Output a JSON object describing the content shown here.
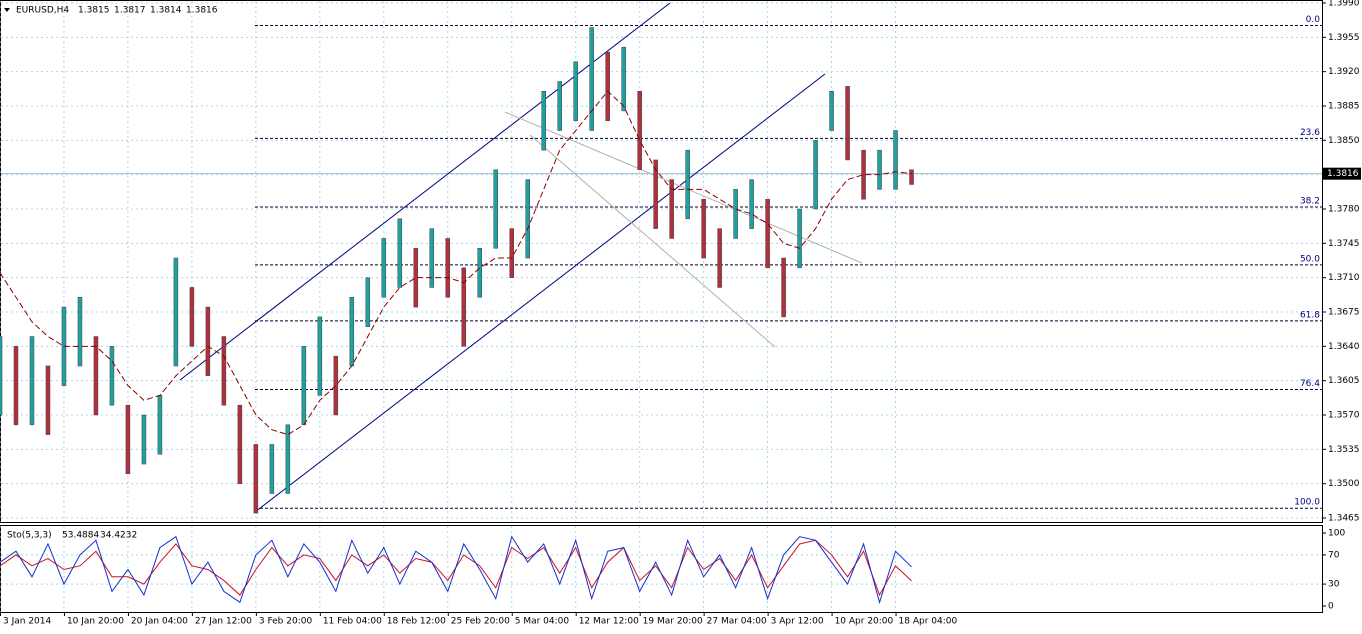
{
  "chart_data": [
    {
      "type": "ohlc",
      "symbol": "EURUSD,H4",
      "quote": [
        1.3815,
        1.3817,
        1.3814,
        1.3816
      ],
      "x": [
        0,
        3,
        6,
        9,
        12,
        15,
        18,
        21,
        24,
        27,
        30,
        33,
        36,
        39,
        42,
        45,
        48,
        51,
        54,
        57,
        60,
        63,
        66,
        69,
        72,
        75,
        78,
        81,
        84,
        87,
        90,
        93,
        96,
        99,
        102,
        105,
        108,
        111,
        114,
        117,
        120,
        123,
        126,
        129,
        132,
        135,
        138,
        141,
        144,
        147,
        150,
        153,
        156,
        159,
        162,
        165,
        168,
        171
      ],
      "high": [
        1.365,
        1.364,
        1.365,
        1.362,
        1.368,
        1.369,
        1.365,
        1.364,
        1.358,
        1.357,
        1.359,
        1.373,
        1.37,
        1.368,
        1.365,
        1.358,
        1.354,
        1.354,
        1.356,
        1.364,
        1.367,
        1.363,
        1.369,
        1.371,
        1.375,
        1.377,
        1.374,
        1.376,
        1.375,
        1.372,
        1.374,
        1.382,
        1.376,
        1.381,
        1.39,
        1.391,
        1.393,
        1.3965,
        1.394,
        1.3945,
        1.39,
        1.383,
        1.381,
        1.384,
        1.379,
        1.376,
        1.38,
        1.381,
        1.379,
        1.373,
        1.378,
        1.385,
        1.39,
        1.3905,
        1.384,
        1.384,
        1.386,
        1.382
      ],
      "low": [
        1.357,
        1.356,
        1.356,
        1.355,
        1.36,
        1.362,
        1.357,
        1.358,
        1.351,
        1.352,
        1.353,
        1.362,
        1.364,
        1.361,
        1.358,
        1.35,
        1.347,
        1.349,
        1.349,
        1.356,
        1.359,
        1.357,
        1.362,
        1.366,
        1.369,
        1.37,
        1.368,
        1.37,
        1.369,
        1.364,
        1.369,
        1.374,
        1.371,
        1.373,
        1.384,
        1.386,
        1.387,
        1.386,
        1.387,
        1.388,
        1.382,
        1.376,
        1.375,
        1.377,
        1.373,
        1.37,
        1.375,
        1.376,
        1.372,
        1.367,
        1.372,
        1.378,
        1.386,
        1.383,
        1.379,
        1.38,
        1.38,
        1.3805
      ],
      "up_color": "#20a0a0",
      "down_color": "#b03040",
      "series": [
        {
          "color": "#8b0000",
          "values": [
            1.3715,
            1.369,
            1.3665,
            1.365,
            1.364,
            1.364,
            1.364,
            1.3625,
            1.36,
            1.3585,
            1.359,
            1.361,
            1.3625,
            1.364,
            1.363,
            1.36,
            1.357,
            1.3555,
            1.355,
            1.356,
            1.3585,
            1.36,
            1.362,
            1.365,
            1.368,
            1.37,
            1.371,
            1.371,
            1.371,
            1.3705,
            1.372,
            1.373,
            1.373,
            1.376,
            1.38,
            1.384,
            1.386,
            1.388,
            1.39,
            1.3885,
            1.385,
            1.382,
            1.38,
            1.38,
            1.38,
            1.379,
            1.378,
            1.3775,
            1.3765,
            1.3745,
            1.374,
            1.376,
            1.379,
            1.381,
            1.3815,
            1.3815,
            1.3818,
            1.3816
          ]
        }
      ],
      "xlim": [
        0,
        248
      ],
      "xticks": [
        {
          "value": 0,
          "label": "3 Jan 2014"
        },
        {
          "value": 12,
          "label": "10 Jan 20:00"
        },
        {
          "value": 24,
          "label": "20 Jan 04:00"
        },
        {
          "value": 36,
          "label": "27 Jan 12:00"
        },
        {
          "value": 48,
          "label": "3 Feb 20:00"
        },
        {
          "value": 60,
          "label": "11 Feb 04:00"
        },
        {
          "value": 72,
          "label": "18 Feb 12:00"
        },
        {
          "value": 84,
          "label": "25 Feb 20:00"
        },
        {
          "value": 96,
          "label": "5 Mar 04:00"
        },
        {
          "value": 108,
          "label": "12 Mar 12:00"
        },
        {
          "value": 120,
          "label": "19 Mar 20:00"
        },
        {
          "value": 132,
          "label": "27 Mar 04:00"
        },
        {
          "value": 144,
          "label": "3 Apr 12:00"
        },
        {
          "value": 156,
          "label": "10 Apr 20:00"
        },
        {
          "value": 168,
          "label": "18 Apr 04:00"
        }
      ],
      "ylim": [
        1.3465,
        1.399
      ],
      "yticks": [
        {
          "value": 1.399,
          "label": "1.3990"
        },
        1.3955,
        {
          "value": 1.392,
          "label": "1.3920"
        },
        1.3885,
        {
          "value": 1.385,
          "label": "1.3850"
        },
        1.3815,
        {
          "value": 1.378,
          "label": "1.3780"
        },
        1.3745,
        {
          "value": 1.371,
          "label": "1.3710"
        },
        1.3675,
        {
          "value": 1.364,
          "label": "1.3640"
        },
        1.3605,
        {
          "value": 1.357,
          "label": "1.3570"
        },
        1.3535,
        {
          "value": 1.35,
          "label": "1.3500"
        },
        1.3465
      ],
      "fib_levels": [
        {
          "label": "0.0",
          "price": 1.3967
        },
        {
          "label": "23.6",
          "price": 1.3852
        },
        {
          "label": "38.2",
          "price": 1.3782
        },
        {
          "label": "50.0",
          "price": 1.3723
        },
        {
          "label": "61.8",
          "price": 1.3666
        },
        {
          "label": "76.4",
          "price": 1.3596
        },
        {
          "label": "100.0",
          "price": 1.3475
        }
      ],
      "grid": true
    },
    {
      "type": "line",
      "title": "Sto(5,3,3)",
      "x": [
        0,
        3,
        6,
        9,
        12,
        15,
        18,
        21,
        24,
        27,
        30,
        33,
        36,
        39,
        42,
        45,
        48,
        51,
        54,
        57,
        60,
        63,
        66,
        69,
        72,
        75,
        78,
        81,
        84,
        87,
        90,
        93,
        96,
        99,
        102,
        105,
        108,
        111,
        114,
        117,
        120,
        123,
        126,
        129,
        132,
        135,
        138,
        141,
        144,
        147,
        150,
        153,
        156,
        159,
        162,
        165,
        168,
        171
      ],
      "xlim": [
        0,
        248
      ],
      "series": [
        {
          "color": "#1030d0",
          "values": [
            60,
            75,
            40,
            85,
            30,
            70,
            90,
            20,
            50,
            15,
            80,
            95,
            30,
            60,
            20,
            5,
            70,
            90,
            40,
            85,
            60,
            20,
            90,
            45,
            80,
            30,
            75,
            60,
            20,
            85,
            50,
            10,
            95,
            60,
            85,
            30,
            90,
            10,
            75,
            80,
            20,
            60,
            15,
            90,
            40,
            70,
            25,
            80,
            10,
            70,
            95,
            90,
            60,
            30,
            85,
            5,
            75,
            53.4884
          ]
        },
        {
          "color": "#d01020",
          "values": [
            55,
            70,
            55,
            65,
            50,
            55,
            75,
            40,
            40,
            30,
            60,
            85,
            55,
            50,
            35,
            15,
            50,
            80,
            55,
            70,
            65,
            35,
            70,
            55,
            70,
            45,
            65,
            60,
            35,
            70,
            55,
            25,
            80,
            65,
            80,
            45,
            80,
            25,
            60,
            80,
            35,
            55,
            25,
            80,
            50,
            65,
            35,
            70,
            25,
            55,
            85,
            90,
            70,
            40,
            75,
            15,
            55,
            34.4232
          ]
        }
      ],
      "ylim": [
        0,
        100
      ],
      "yticks": [
        0,
        30,
        70,
        100
      ],
      "grid": true
    }
  ]
}
